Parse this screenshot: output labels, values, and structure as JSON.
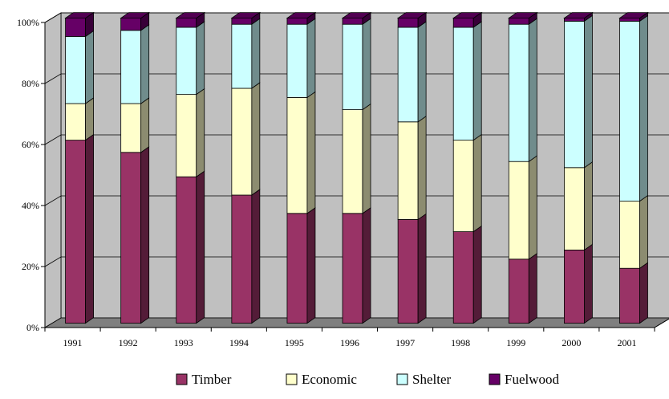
{
  "chart_data": {
    "type": "bar",
    "stacked": true,
    "percent": true,
    "three_d": true,
    "categories": [
      "1991",
      "1992",
      "1993",
      "1994",
      "1995",
      "1996",
      "1997",
      "1998",
      "1999",
      "2000",
      "2001"
    ],
    "series": [
      {
        "name": "Timber",
        "color": "#993366",
        "values": [
          60,
          56,
          48,
          42,
          36,
          36,
          34,
          30,
          21,
          24,
          18
        ]
      },
      {
        "name": "Economic",
        "color": "#ffffcc",
        "values": [
          12,
          16,
          27,
          35,
          38,
          34,
          32,
          30,
          32,
          27,
          22
        ]
      },
      {
        "name": "Shelter",
        "color": "#ccffff",
        "values": [
          22,
          24,
          22,
          21,
          24,
          28,
          31,
          37,
          45,
          48,
          59
        ]
      },
      {
        "name": "Fuelwood",
        "color": "#660066",
        "values": [
          6,
          4,
          3,
          2,
          2,
          2,
          3,
          3,
          2,
          1,
          1
        ]
      }
    ],
    "y_ticks": [
      "0%",
      "20%",
      "40%",
      "60%",
      "80%",
      "100%"
    ],
    "ylim": [
      0,
      100
    ],
    "grid": true,
    "legend": "bottom",
    "title": "",
    "xlabel": "",
    "ylabel": ""
  }
}
